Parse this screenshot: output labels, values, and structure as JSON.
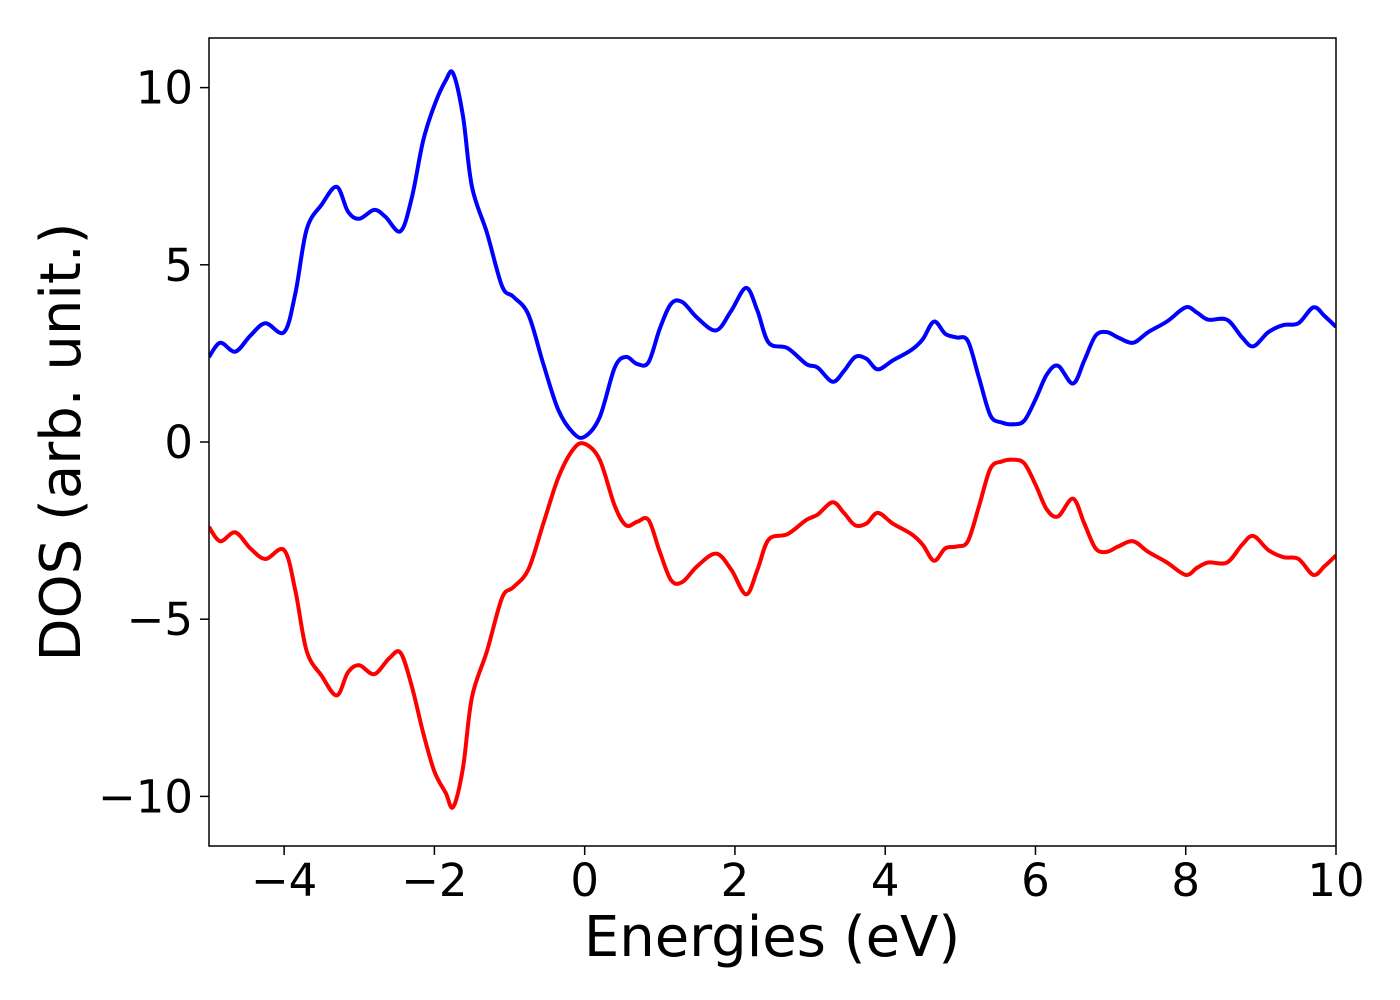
{
  "chart_data": {
    "type": "line",
    "title": "",
    "xlabel": "Energies (eV)",
    "ylabel": "DOS (arb. unit.)",
    "xlim": [
      -5,
      10
    ],
    "ylim": [
      -11.4,
      11.4
    ],
    "xticks": [
      -4,
      -2,
      0,
      2,
      4,
      6,
      8,
      10
    ],
    "xtick_labels": [
      "−4",
      "−2",
      "0",
      "2",
      "4",
      "6",
      "8",
      "10"
    ],
    "yticks": [
      10,
      5,
      0,
      -5,
      -10
    ],
    "ytick_labels": [
      "10",
      "5",
      "0",
      "−5",
      "−10"
    ],
    "grid": false,
    "legend": "none",
    "series": [
      {
        "color": "#0000ff",
        "points": [
          [
            -5.0,
            2.4
          ],
          [
            -4.85,
            2.8
          ],
          [
            -4.65,
            2.55
          ],
          [
            -4.45,
            3.0
          ],
          [
            -4.25,
            3.35
          ],
          [
            -4.0,
            3.1
          ],
          [
            -3.85,
            4.2
          ],
          [
            -3.7,
            6.0
          ],
          [
            -3.5,
            6.7
          ],
          [
            -3.3,
            7.2
          ],
          [
            -3.15,
            6.5
          ],
          [
            -3.0,
            6.3
          ],
          [
            -2.8,
            6.55
          ],
          [
            -2.65,
            6.35
          ],
          [
            -2.45,
            5.95
          ],
          [
            -2.3,
            6.9
          ],
          [
            -2.15,
            8.5
          ],
          [
            -2.0,
            9.5
          ],
          [
            -1.85,
            10.2
          ],
          [
            -1.75,
            10.4
          ],
          [
            -1.62,
            9.2
          ],
          [
            -1.5,
            7.2
          ],
          [
            -1.3,
            5.9
          ],
          [
            -1.1,
            4.4
          ],
          [
            -0.95,
            4.1
          ],
          [
            -0.75,
            3.6
          ],
          [
            -0.55,
            2.2
          ],
          [
            -0.35,
            0.9
          ],
          [
            -0.15,
            0.25
          ],
          [
            0.0,
            0.15
          ],
          [
            0.2,
            0.7
          ],
          [
            0.4,
            2.1
          ],
          [
            0.55,
            2.4
          ],
          [
            0.7,
            2.2
          ],
          [
            0.85,
            2.25
          ],
          [
            1.0,
            3.2
          ],
          [
            1.15,
            3.9
          ],
          [
            1.3,
            3.95
          ],
          [
            1.5,
            3.5
          ],
          [
            1.75,
            3.15
          ],
          [
            1.95,
            3.7
          ],
          [
            2.15,
            4.35
          ],
          [
            2.3,
            3.7
          ],
          [
            2.45,
            2.8
          ],
          [
            2.7,
            2.65
          ],
          [
            2.95,
            2.2
          ],
          [
            3.1,
            2.1
          ],
          [
            3.3,
            1.7
          ],
          [
            3.45,
            2.0
          ],
          [
            3.6,
            2.4
          ],
          [
            3.75,
            2.35
          ],
          [
            3.9,
            2.05
          ],
          [
            4.1,
            2.3
          ],
          [
            4.35,
            2.6
          ],
          [
            4.5,
            2.9
          ],
          [
            4.65,
            3.4
          ],
          [
            4.8,
            3.05
          ],
          [
            4.95,
            2.95
          ],
          [
            5.1,
            2.85
          ],
          [
            5.25,
            1.8
          ],
          [
            5.4,
            0.75
          ],
          [
            5.55,
            0.55
          ],
          [
            5.7,
            0.5
          ],
          [
            5.85,
            0.6
          ],
          [
            6.0,
            1.2
          ],
          [
            6.15,
            1.9
          ],
          [
            6.3,
            2.15
          ],
          [
            6.5,
            1.65
          ],
          [
            6.65,
            2.3
          ],
          [
            6.8,
            3.0
          ],
          [
            6.95,
            3.1
          ],
          [
            7.1,
            2.95
          ],
          [
            7.3,
            2.8
          ],
          [
            7.5,
            3.1
          ],
          [
            7.75,
            3.4
          ],
          [
            8.0,
            3.8
          ],
          [
            8.15,
            3.65
          ],
          [
            8.3,
            3.45
          ],
          [
            8.55,
            3.45
          ],
          [
            8.75,
            2.95
          ],
          [
            8.9,
            2.7
          ],
          [
            9.1,
            3.1
          ],
          [
            9.3,
            3.3
          ],
          [
            9.5,
            3.35
          ],
          [
            9.7,
            3.8
          ],
          [
            9.85,
            3.55
          ],
          [
            10.0,
            3.25
          ]
        ]
      },
      {
        "color": "#ff0000",
        "points": [
          [
            -5.0,
            -2.4
          ],
          [
            -4.85,
            -2.8
          ],
          [
            -4.65,
            -2.55
          ],
          [
            -4.45,
            -3.0
          ],
          [
            -4.25,
            -3.3
          ],
          [
            -4.0,
            -3.05
          ],
          [
            -3.85,
            -4.2
          ],
          [
            -3.7,
            -5.9
          ],
          [
            -3.5,
            -6.6
          ],
          [
            -3.3,
            -7.15
          ],
          [
            -3.15,
            -6.5
          ],
          [
            -3.0,
            -6.3
          ],
          [
            -2.8,
            -6.55
          ],
          [
            -2.6,
            -6.1
          ],
          [
            -2.45,
            -5.95
          ],
          [
            -2.3,
            -6.9
          ],
          [
            -2.15,
            -8.2
          ],
          [
            -2.0,
            -9.3
          ],
          [
            -1.85,
            -9.9
          ],
          [
            -1.75,
            -10.3
          ],
          [
            -1.62,
            -9.2
          ],
          [
            -1.5,
            -7.2
          ],
          [
            -1.3,
            -5.9
          ],
          [
            -1.1,
            -4.4
          ],
          [
            -0.95,
            -4.1
          ],
          [
            -0.75,
            -3.6
          ],
          [
            -0.55,
            -2.3
          ],
          [
            -0.35,
            -1.0
          ],
          [
            -0.15,
            -0.2
          ],
          [
            0.0,
            -0.05
          ],
          [
            0.2,
            -0.5
          ],
          [
            0.4,
            -1.8
          ],
          [
            0.55,
            -2.35
          ],
          [
            0.7,
            -2.25
          ],
          [
            0.85,
            -2.2
          ],
          [
            1.0,
            -3.1
          ],
          [
            1.15,
            -3.9
          ],
          [
            1.3,
            -3.95
          ],
          [
            1.5,
            -3.5
          ],
          [
            1.75,
            -3.15
          ],
          [
            1.95,
            -3.6
          ],
          [
            2.15,
            -4.3
          ],
          [
            2.3,
            -3.6
          ],
          [
            2.45,
            -2.75
          ],
          [
            2.7,
            -2.6
          ],
          [
            2.95,
            -2.2
          ],
          [
            3.1,
            -2.05
          ],
          [
            3.3,
            -1.7
          ],
          [
            3.45,
            -2.0
          ],
          [
            3.6,
            -2.35
          ],
          [
            3.75,
            -2.3
          ],
          [
            3.9,
            -2.0
          ],
          [
            4.1,
            -2.3
          ],
          [
            4.35,
            -2.6
          ],
          [
            4.5,
            -2.9
          ],
          [
            4.65,
            -3.35
          ],
          [
            4.8,
            -3.0
          ],
          [
            4.95,
            -2.95
          ],
          [
            5.1,
            -2.8
          ],
          [
            5.25,
            -1.8
          ],
          [
            5.4,
            -0.75
          ],
          [
            5.55,
            -0.55
          ],
          [
            5.7,
            -0.5
          ],
          [
            5.85,
            -0.6
          ],
          [
            6.0,
            -1.2
          ],
          [
            6.15,
            -1.9
          ],
          [
            6.3,
            -2.1
          ],
          [
            6.5,
            -1.6
          ],
          [
            6.65,
            -2.3
          ],
          [
            6.8,
            -3.0
          ],
          [
            6.95,
            -3.1
          ],
          [
            7.1,
            -2.95
          ],
          [
            7.3,
            -2.8
          ],
          [
            7.5,
            -3.1
          ],
          [
            7.75,
            -3.4
          ],
          [
            8.0,
            -3.75
          ],
          [
            8.15,
            -3.55
          ],
          [
            8.3,
            -3.4
          ],
          [
            8.55,
            -3.4
          ],
          [
            8.75,
            -2.9
          ],
          [
            8.9,
            -2.65
          ],
          [
            9.1,
            -3.05
          ],
          [
            9.3,
            -3.25
          ],
          [
            9.5,
            -3.3
          ],
          [
            9.7,
            -3.75
          ],
          [
            9.85,
            -3.5
          ],
          [
            10.0,
            -3.2
          ]
        ]
      }
    ]
  }
}
